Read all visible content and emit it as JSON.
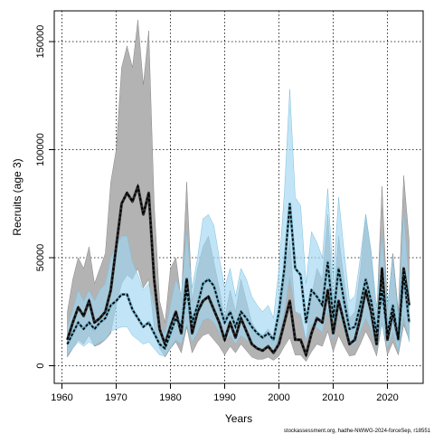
{
  "chart_data": {
    "type": "line",
    "xlabel": "Years",
    "ylabel": "Recruits (age 3)",
    "credit": "stockassessment.org, hadhe-NWWG-2024-forceSep, r18551",
    "xlim": [
      1960,
      2024
    ],
    "ylim": [
      0,
      160000
    ],
    "x_ticks": [
      1960,
      1970,
      1980,
      1990,
      2000,
      2010,
      2020
    ],
    "y_ticks": [
      0,
      50000,
      100000,
      150000
    ],
    "grid": true,
    "colors": {
      "gray_band": "#b3b3b3",
      "gray_line": "#333333",
      "blue_band": "#9fd7f2",
      "blue_line": "#6aa9c0",
      "dashed": "#000000"
    },
    "years": [
      1961,
      1962,
      1963,
      1964,
      1965,
      1966,
      1967,
      1968,
      1969,
      1970,
      1971,
      1972,
      1973,
      1974,
      1975,
      1976,
      1977,
      1978,
      1979,
      1980,
      1981,
      1982,
      1983,
      1984,
      1985,
      1986,
      1987,
      1988,
      1989,
      1990,
      1991,
      1992,
      1993,
      1994,
      1995,
      1996,
      1997,
      1998,
      1999,
      2000,
      2001,
      2002,
      2003,
      2004,
      2005,
      2006,
      2007,
      2008,
      2009,
      2010,
      2011,
      2012,
      2013,
      2014,
      2015,
      2016,
      2017,
      2018,
      2019,
      2020,
      2021,
      2022,
      2023,
      2024
    ],
    "series": [
      {
        "style": "gray-solid",
        "values": [
          12000,
          20000,
          27000,
          23000,
          30000,
          20000,
          22000,
          25000,
          35000,
          55000,
          75000,
          80000,
          76000,
          83000,
          70000,
          80000,
          40000,
          17000,
          10000,
          18000,
          25000,
          15000,
          40000,
          15000,
          25000,
          30000,
          32000,
          26000,
          20000,
          12000,
          20000,
          13000,
          22000,
          16000,
          10000,
          8000,
          7000,
          9000,
          6000,
          10000,
          20000,
          30000,
          12000,
          12000,
          5000,
          15000,
          22000,
          20000,
          35000,
          15000,
          30000,
          20000,
          10000,
          12000,
          22000,
          35000,
          25000,
          10000,
          45000,
          12000,
          25000,
          12000,
          45000,
          28000
        ],
        "upper": [
          25000,
          40000,
          50000,
          45000,
          55000,
          38000,
          45000,
          52000,
          85000,
          100000,
          138000,
          148000,
          138000,
          160000,
          130000,
          155000,
          75000,
          30000,
          20000,
          45000,
          50000,
          30000,
          85000,
          30000,
          45000,
          55000,
          60000,
          48000,
          36000,
          22000,
          35000,
          25000,
          40000,
          30000,
          20000,
          16000,
          14000,
          17000,
          13000,
          20000,
          40000,
          58000,
          25000,
          24000,
          12000,
          32000,
          45000,
          40000,
          70000,
          30000,
          60000,
          40000,
          22000,
          25000,
          44000,
          70000,
          52000,
          22000,
          83000,
          26000,
          52000,
          25000,
          88000,
          58000
        ],
        "lower": [
          4000,
          8000,
          12000,
          10000,
          14000,
          9000,
          10000,
          12000,
          15000,
          28000,
          38000,
          42000,
          40000,
          45000,
          36000,
          40000,
          18000,
          8000,
          4000,
          8000,
          11000,
          6000,
          18000,
          6000,
          11000,
          14000,
          15000,
          12000,
          9000,
          5000,
          9000,
          6000,
          10000,
          7000,
          4000,
          3000,
          3000,
          4000,
          2500,
          4500,
          9000,
          13000,
          5000,
          5000,
          2000,
          6500,
          10000,
          9000,
          16000,
          6500,
          14000,
          9000,
          4500,
          5000,
          10000,
          16000,
          11000,
          4500,
          20000,
          5000,
          11000,
          5000,
          19000,
          12000
        ]
      },
      {
        "style": "blue-dashed",
        "values": [
          10000,
          15000,
          20000,
          17000,
          20000,
          17000,
          20000,
          22000,
          28000,
          30000,
          33000,
          33000,
          26000,
          22000,
          18000,
          20000,
          15000,
          10000,
          8000,
          15000,
          22000,
          18000,
          35000,
          20000,
          28000,
          38000,
          40000,
          37000,
          28000,
          20000,
          25000,
          18000,
          25000,
          22000,
          18000,
          15000,
          13000,
          15000,
          12000,
          25000,
          45000,
          75000,
          45000,
          42000,
          20000,
          35000,
          32000,
          28000,
          48000,
          22000,
          45000,
          30000,
          17000,
          18000,
          28000,
          40000,
          30000,
          15000,
          35000,
          15000,
          28000,
          12000,
          42000,
          20000
        ],
        "upper": [
          18000,
          26000,
          35000,
          30000,
          35000,
          30000,
          35000,
          38000,
          50000,
          55000,
          60000,
          60000,
          48000,
          42000,
          35000,
          38000,
          28000,
          18000,
          15000,
          28000,
          40000,
          33000,
          62000,
          36000,
          50000,
          68000,
          70000,
          65000,
          50000,
          36000,
          45000,
          32000,
          45000,
          40000,
          32000,
          28000,
          25000,
          28000,
          22000,
          45000,
          80000,
          128000,
          78000,
          74000,
          38000,
          62000,
          57000,
          50000,
          82000,
          40000,
          78000,
          53000,
          30000,
          32000,
          50000,
          70000,
          53000,
          27000,
          60000,
          27000,
          50000,
          22000,
          72000,
          37000
        ],
        "lower": [
          5000,
          8000,
          11000,
          9000,
          11000,
          9500,
          11000,
          12000,
          16000,
          17000,
          18000,
          18000,
          14000,
          12000,
          10000,
          11000,
          8000,
          5000,
          4500,
          8500,
          12000,
          10000,
          19000,
          11000,
          15500,
          21000,
          22000,
          20000,
          15500,
          11000,
          14000,
          10000,
          14000,
          12000,
          10000,
          8500,
          7000,
          8500,
          6500,
          14000,
          25000,
          41000,
          25000,
          23000,
          11000,
          19000,
          17500,
          15500,
          26000,
          12000,
          24500,
          16500,
          9500,
          10000,
          15500,
          22000,
          16500,
          8300,
          19000,
          8300,
          15500,
          6600,
          23000,
          11000
        ]
      }
    ]
  }
}
